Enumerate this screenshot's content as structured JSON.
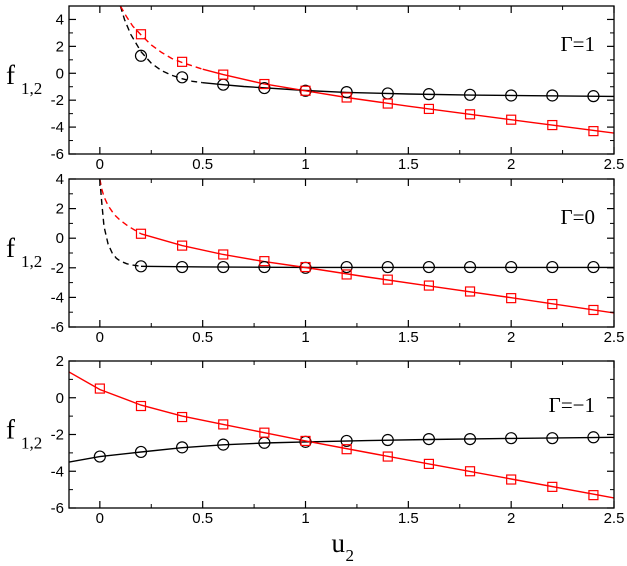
{
  "chart_data": [
    {
      "type": "scatter",
      "panel_label": "Γ=1",
      "ylabel": "f",
      "ylabel_subscript": "1,2",
      "xlim": [
        -0.15,
        2.5
      ],
      "ylim": [
        -6,
        5
      ],
      "x_ticks": [
        0,
        0.5,
        1,
        1.5,
        2,
        2.5
      ],
      "x_tick_labels": [
        "0",
        "0.5",
        "1",
        "1.5",
        "2",
        "2.5"
      ],
      "y_ticks": [
        -6,
        -4,
        -2,
        0,
        2,
        4
      ],
      "y_tick_labels": [
        "-6",
        "-4",
        "-2",
        "0",
        "2",
        "4"
      ],
      "colors": {
        "black": "#000000",
        "red": "#ff0000"
      },
      "series": [
        {
          "color": "black",
          "marker": "circle",
          "x": [
            0.2,
            0.4,
            0.6,
            0.8,
            1.0,
            1.2,
            1.4,
            1.6,
            1.8,
            2.0,
            2.2,
            2.4
          ],
          "y": [
            1.3,
            -0.3,
            -0.85,
            -1.1,
            -1.3,
            -1.4,
            -1.5,
            -1.55,
            -1.6,
            -1.65,
            -1.65,
            -1.7
          ]
        },
        {
          "color": "red",
          "marker": "square",
          "x": [
            0.2,
            0.4,
            0.6,
            0.8,
            1.0,
            1.2,
            1.4,
            1.6,
            1.8,
            2.0,
            2.2,
            2.4
          ],
          "y": [
            2.9,
            0.85,
            -0.1,
            -0.8,
            -1.3,
            -1.8,
            -2.25,
            -2.65,
            -3.05,
            -3.45,
            -3.85,
            -4.3
          ]
        }
      ],
      "curves": [
        {
          "color": "black",
          "style": "dashed",
          "x": [
            0.1,
            0.12,
            0.15,
            0.2,
            0.25,
            0.3,
            0.35,
            0.4,
            0.45,
            0.5
          ],
          "y": [
            5.0,
            4.0,
            2.9,
            1.6,
            0.75,
            0.2,
            -0.15,
            -0.4,
            -0.6,
            -0.7
          ]
        },
        {
          "color": "black",
          "style": "solid",
          "x": [
            0.5,
            0.6,
            0.7,
            0.8,
            1.0,
            1.2,
            1.5,
            1.8,
            2.1,
            2.5
          ],
          "y": [
            -0.7,
            -0.85,
            -0.98,
            -1.08,
            -1.28,
            -1.42,
            -1.54,
            -1.62,
            -1.67,
            -1.72
          ]
        },
        {
          "color": "red",
          "style": "dashed",
          "x": [
            0.1,
            0.13,
            0.16,
            0.2,
            0.25,
            0.3,
            0.35,
            0.4,
            0.45,
            0.5
          ],
          "y": [
            5.0,
            4.2,
            3.5,
            2.85,
            2.1,
            1.55,
            1.1,
            0.8,
            0.55,
            0.3
          ]
        },
        {
          "color": "red",
          "style": "solid",
          "x": [
            0.5,
            0.6,
            0.8,
            1.0,
            1.2,
            1.5,
            1.8,
            2.1,
            2.5
          ],
          "y": [
            0.3,
            -0.1,
            -0.8,
            -1.3,
            -1.8,
            -2.45,
            -3.05,
            -3.65,
            -4.45
          ]
        }
      ]
    },
    {
      "type": "scatter",
      "panel_label": "Γ=0",
      "ylabel": "f",
      "ylabel_subscript": "1,2",
      "xlim": [
        -0.15,
        2.5
      ],
      "ylim": [
        -6,
        4
      ],
      "x_ticks": [
        0,
        0.5,
        1,
        1.5,
        2,
        2.5
      ],
      "x_tick_labels": [
        "0",
        "0.5",
        "1",
        "1.5",
        "2",
        "2.5"
      ],
      "y_ticks": [
        -6,
        -4,
        -2,
        0,
        2,
        4
      ],
      "y_tick_labels": [
        "-6",
        "-4",
        "-2",
        "0",
        "2",
        "4"
      ],
      "colors": {
        "black": "#000000",
        "red": "#ff0000"
      },
      "series": [
        {
          "color": "black",
          "marker": "circle",
          "x": [
            0.2,
            0.4,
            0.6,
            0.8,
            1.0,
            1.2,
            1.4,
            1.6,
            1.8,
            2.0,
            2.2,
            2.4
          ],
          "y": [
            -1.9,
            -1.95,
            -1.95,
            -1.95,
            -2.0,
            -1.95,
            -1.95,
            -1.95,
            -1.95,
            -1.95,
            -1.95,
            -1.95
          ]
        },
        {
          "color": "red",
          "marker": "square",
          "x": [
            0.2,
            0.4,
            0.6,
            0.8,
            1.0,
            1.2,
            1.4,
            1.6,
            1.8,
            2.0,
            2.2,
            2.4
          ],
          "y": [
            0.3,
            -0.5,
            -1.1,
            -1.55,
            -1.95,
            -2.45,
            -2.8,
            -3.2,
            -3.6,
            -4.05,
            -4.45,
            -4.85
          ]
        }
      ],
      "curves": [
        {
          "color": "black",
          "style": "dashed",
          "x": [
            0.0,
            0.01,
            0.02,
            0.04,
            0.06,
            0.08,
            0.1,
            0.13,
            0.16,
            0.2
          ],
          "y": [
            4.0,
            2.3,
            0.8,
            -0.4,
            -1.0,
            -1.35,
            -1.55,
            -1.72,
            -1.82,
            -1.9
          ]
        },
        {
          "color": "black",
          "style": "solid",
          "x": [
            0.2,
            0.5,
            1.0,
            1.5,
            2.0,
            2.5
          ],
          "y": [
            -1.9,
            -1.94,
            -1.97,
            -1.97,
            -1.97,
            -1.97
          ]
        },
        {
          "color": "red",
          "style": "dashed",
          "x": [
            0.0,
            0.01,
            0.02,
            0.04,
            0.07,
            0.1,
            0.14,
            0.2
          ],
          "y": [
            4.0,
            3.3,
            2.8,
            2.2,
            1.6,
            1.2,
            0.8,
            0.3
          ]
        },
        {
          "color": "red",
          "style": "solid",
          "x": [
            0.2,
            0.4,
            0.6,
            0.8,
            1.0,
            1.3,
            1.6,
            2.0,
            2.5
          ],
          "y": [
            0.3,
            -0.5,
            -1.1,
            -1.58,
            -1.98,
            -2.62,
            -3.22,
            -4.02,
            -5.05
          ]
        }
      ]
    },
    {
      "type": "scatter",
      "panel_label": "Γ=−1",
      "ylabel": "f",
      "ylabel_subscript": "1,2",
      "xlabel": "u",
      "xlabel_subscript": "2",
      "xlim": [
        -0.15,
        2.5
      ],
      "ylim": [
        -6,
        2
      ],
      "x_ticks": [
        0,
        0.5,
        1,
        1.5,
        2,
        2.5
      ],
      "x_tick_labels": [
        "0",
        "0.5",
        "1",
        "1.5",
        "2",
        "2.5"
      ],
      "y_ticks": [
        -6,
        -4,
        -2,
        0,
        2
      ],
      "y_tick_labels": [
        "-6",
        "-4",
        "-2",
        "0",
        "2"
      ],
      "colors": {
        "black": "#000000",
        "red": "#ff0000"
      },
      "series": [
        {
          "color": "black",
          "marker": "circle",
          "x": [
            0.0,
            0.2,
            0.4,
            0.6,
            0.8,
            1.0,
            1.2,
            1.4,
            1.6,
            1.8,
            2.0,
            2.2,
            2.4
          ],
          "y": [
            -3.2,
            -2.95,
            -2.7,
            -2.55,
            -2.45,
            -2.4,
            -2.35,
            -2.3,
            -2.25,
            -2.25,
            -2.2,
            -2.2,
            -2.15
          ]
        },
        {
          "color": "red",
          "marker": "square",
          "x": [
            0.0,
            0.2,
            0.4,
            0.6,
            0.8,
            1.0,
            1.2,
            1.4,
            1.6,
            1.8,
            2.0,
            2.2,
            2.4
          ],
          "y": [
            0.5,
            -0.45,
            -1.05,
            -1.45,
            -1.9,
            -2.35,
            -2.8,
            -3.2,
            -3.6,
            -4.0,
            -4.45,
            -4.85,
            -5.3
          ]
        }
      ],
      "curves": [
        {
          "color": "black",
          "style": "solid",
          "x": [
            -0.15,
            0.0,
            0.2,
            0.4,
            0.6,
            0.8,
            1.0,
            1.3,
            1.6,
            2.0,
            2.5
          ],
          "y": [
            -3.5,
            -3.2,
            -2.95,
            -2.72,
            -2.56,
            -2.46,
            -2.4,
            -2.33,
            -2.27,
            -2.21,
            -2.15
          ]
        },
        {
          "color": "red",
          "style": "solid",
          "x": [
            -0.15,
            0.0,
            0.2,
            0.4,
            0.6,
            0.8,
            1.0,
            1.3,
            1.6,
            2.0,
            2.5
          ],
          "y": [
            1.4,
            0.45,
            -0.4,
            -1.0,
            -1.45,
            -1.9,
            -2.35,
            -2.98,
            -3.6,
            -4.42,
            -5.45
          ]
        }
      ]
    }
  ]
}
